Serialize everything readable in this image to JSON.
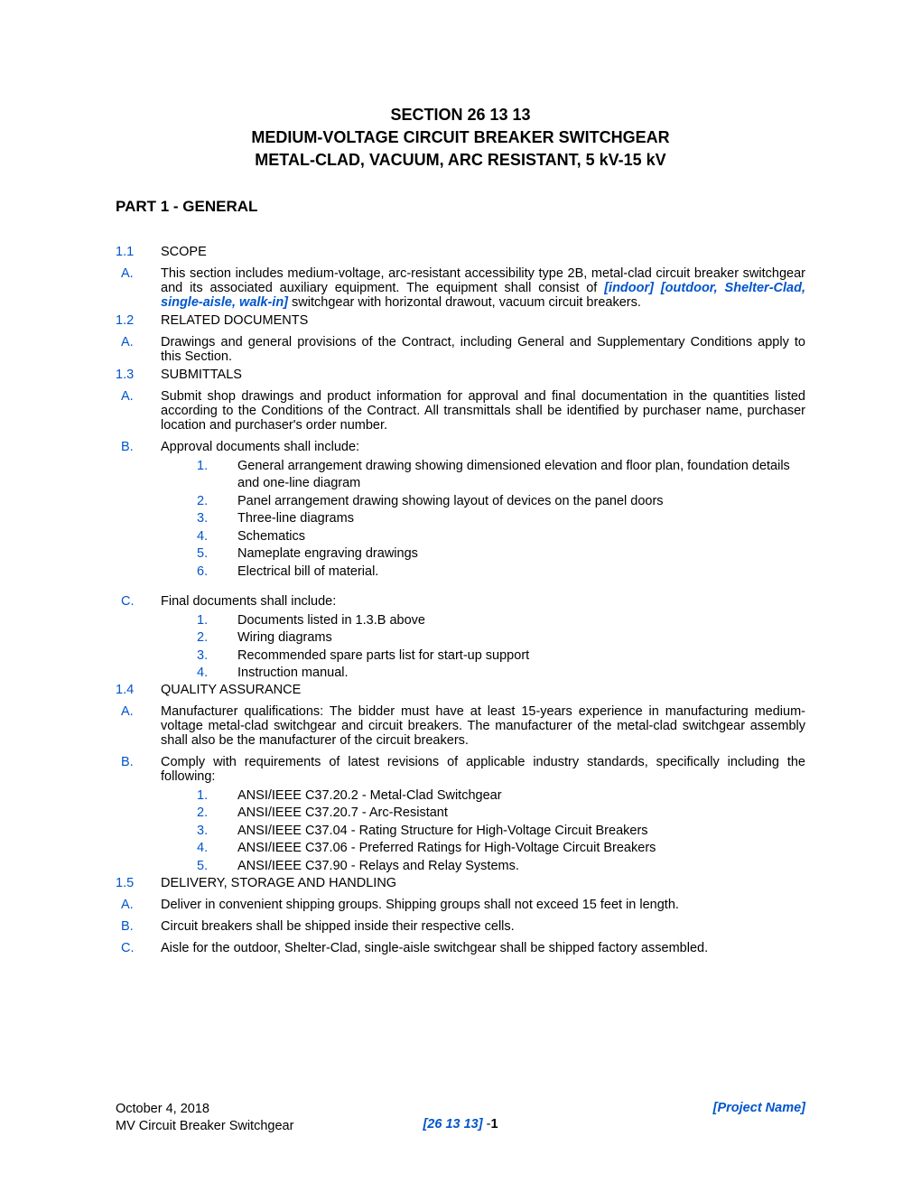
{
  "title": {
    "line1": "SECTION 26 13 13",
    "line2": "MEDIUM-VOLTAGE CIRCUIT BREAKER SWITCHGEAR",
    "line3": "METAL-CLAD, VACUUM, ARC RESISTANT, 5 kV-15 kV"
  },
  "part": "PART 1 - GENERAL",
  "sections": {
    "s11": {
      "num": "1.1",
      "head": "SCOPE"
    },
    "s11A": {
      "letter": "A.",
      "text_before": "This section includes medium-voltage, arc-resistant accessibility type 2B, metal-clad circuit breaker switchgear and its associated auxiliary equipment. The equipment shall consist of ",
      "emph": "[indoor] [outdoor, Shelter-Clad, single-aisle, walk-in]",
      "text_after": " switchgear with horizontal drawout, vacuum circuit breakers."
    },
    "s12": {
      "num": "1.2",
      "head": "RELATED DOCUMENTS"
    },
    "s12A": {
      "letter": "A.",
      "text": "Drawings and general provisions of the Contract, including General and Supplementary Conditions apply to this Section."
    },
    "s13": {
      "num": "1.3",
      "head": "SUBMITTALS"
    },
    "s13A": {
      "letter": "A.",
      "text": "Submit shop drawings and product information for approval and final documentation in the quantities listed according to the Conditions of the Contract. All transmittals shall be identified by purchaser name, purchaser location and purchaser's order number."
    },
    "s13B": {
      "letter": "B.",
      "text": "Approval documents shall include:"
    },
    "s13B_items": [
      {
        "n": "1.",
        "t": "General arrangement drawing showing dimensioned elevation and floor plan, foundation details and one-line diagram"
      },
      {
        "n": "2.",
        "t": "Panel arrangement drawing showing layout of devices on the panel doors"
      },
      {
        "n": "3.",
        "t": "Three-line diagrams"
      },
      {
        "n": "4.",
        "t": "Schematics"
      },
      {
        "n": "5.",
        "t": "Nameplate engraving drawings"
      },
      {
        "n": "6.",
        "t": "Electrical bill of material."
      }
    ],
    "s13C": {
      "letter": "C.",
      "text": "Final documents shall include:"
    },
    "s13C_items": [
      {
        "n": "1.",
        "t": "Documents listed in 1.3.B above"
      },
      {
        "n": "2.",
        "t": "Wiring diagrams"
      },
      {
        "n": "3.",
        "t": "Recommended spare parts list for start-up support"
      },
      {
        "n": "4.",
        "t": "Instruction manual."
      }
    ],
    "s14": {
      "num": "1.4",
      "head": "QUALITY ASSURANCE"
    },
    "s14A": {
      "letter": "A.",
      "text": "Manufacturer qualifications: The bidder must have at least 15-years experience in manufacturing medium-voltage metal-clad switchgear and circuit breakers. The manufacturer of the metal-clad switchgear assembly shall also be the manufacturer of the circuit breakers."
    },
    "s14B": {
      "letter": "B.",
      "text": "Comply with requirements of latest revisions of applicable industry standards, specifically including the following:"
    },
    "s14B_items": [
      {
        "n": "1.",
        "t": "ANSI/IEEE C37.20.2 - Metal-Clad Switchgear"
      },
      {
        "n": "2.",
        "t": "ANSI/IEEE C37.20.7 - Arc-Resistant"
      },
      {
        "n": "3.",
        "t": "ANSI/IEEE C37.04 - Rating Structure for High-Voltage Circuit Breakers"
      },
      {
        "n": "4.",
        "t": "ANSI/IEEE C37.06 - Preferred Ratings for High-Voltage Circuit Breakers"
      },
      {
        "n": "5.",
        "t": "ANSI/IEEE C37.90 - Relays and Relay Systems."
      }
    ],
    "s15": {
      "num": "1.5",
      "head": "DELIVERY, STORAGE AND HANDLING"
    },
    "s15A": {
      "letter": "A.",
      "text": "Deliver in convenient shipping groups. Shipping groups shall not exceed 15 feet in length."
    },
    "s15B": {
      "letter": "B.",
      "text": "Circuit breakers shall be shipped inside their respective cells."
    },
    "s15C": {
      "letter": "C.",
      "text": "Aisle for the outdoor, Shelter-Clad, single-aisle switchgear shall be shipped factory assembled."
    }
  },
  "footer": {
    "date": "October 4, 2018",
    "doc": "MV Circuit Breaker Switchgear",
    "secnum": "[26 13 13]",
    "dash_page": " -",
    "page": "1",
    "project": "[Project Name]"
  },
  "colors": {
    "accent": "#0055cc",
    "text": "#000000",
    "bg": "#ffffff"
  },
  "typography": {
    "body_fontsize_pt": 11,
    "title_fontsize_pt": 14,
    "font_family": "Arial"
  }
}
